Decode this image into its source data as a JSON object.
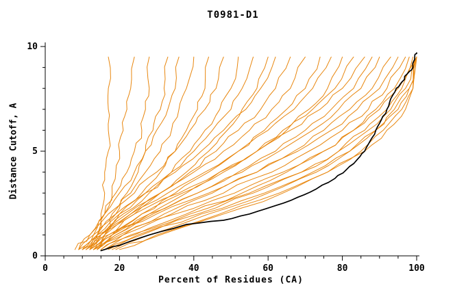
{
  "chart_data": {
    "type": "line",
    "title": "T0981-D1",
    "xlabel": "Percent of Residues (CA)",
    "ylabel": "Distance Cutoff, A",
    "xlim": [
      0,
      100
    ],
    "ylim": [
      0,
      10
    ],
    "xticks": [
      0,
      20,
      40,
      60,
      80,
      100
    ],
    "yticks": [
      0,
      5,
      10
    ],
    "x_minor_step": 5,
    "y_minor_step": 1,
    "legend": "none",
    "grid": false,
    "colors": {
      "models": "#e8860d",
      "highlight": "#000000",
      "axis": "#000000"
    },
    "y_grid": [
      0.3,
      1,
      2,
      3,
      4,
      5,
      6,
      7,
      8,
      9.5
    ],
    "highlight_series": {
      "name": "selected-model",
      "points": [
        [
          15,
          0.25
        ],
        [
          20,
          0.5
        ],
        [
          28,
          1
        ],
        [
          38,
          1.5
        ],
        [
          48,
          1.7
        ],
        [
          55,
          2
        ],
        [
          62,
          2.4
        ],
        [
          68,
          2.8
        ],
        [
          73,
          3.2
        ],
        [
          78,
          3.7
        ],
        [
          81,
          4.1
        ],
        [
          84,
          4.6
        ],
        [
          86,
          5
        ],
        [
          87.5,
          5.5
        ],
        [
          89,
          6
        ],
        [
          90.5,
          6.5
        ],
        [
          92,
          7
        ],
        [
          93,
          7.5
        ],
        [
          94.5,
          8
        ],
        [
          96,
          8.3
        ],
        [
          97.5,
          8.7
        ],
        [
          99,
          9
        ],
        [
          99.5,
          9.6
        ],
        [
          100,
          9.7
        ]
      ]
    },
    "model_series": [
      [
        13,
        14,
        15,
        16,
        16,
        17,
        17,
        17,
        17,
        17
      ],
      [
        12,
        14,
        16,
        18,
        19,
        20,
        21,
        22,
        23,
        24
      ],
      [
        10,
        13,
        16,
        19,
        22,
        24,
        26,
        27,
        28,
        28
      ],
      [
        14,
        16,
        19,
        22,
        25,
        27,
        29,
        31,
        32,
        33
      ],
      [
        9,
        12,
        16,
        20,
        24,
        27,
        30,
        33,
        35,
        36
      ],
      [
        11,
        14,
        18,
        23,
        27,
        31,
        34,
        36,
        38,
        40
      ],
      [
        13,
        16,
        20,
        26,
        31,
        35,
        38,
        41,
        43,
        44
      ],
      [
        8,
        12,
        17,
        24,
        30,
        35,
        39,
        43,
        46,
        48
      ],
      [
        12,
        15,
        21,
        28,
        34,
        39,
        43,
        47,
        50,
        52
      ],
      [
        10,
        14,
        20,
        27,
        34,
        40,
        45,
        50,
        53,
        56
      ],
      [
        14,
        18,
        24,
        31,
        38,
        44,
        49,
        53,
        57,
        60
      ],
      [
        9,
        13,
        19,
        27,
        35,
        42,
        48,
        54,
        58,
        62
      ],
      [
        12,
        16,
        23,
        31,
        39,
        46,
        52,
        58,
        62,
        66
      ],
      [
        11,
        15,
        22,
        31,
        40,
        48,
        55,
        61,
        66,
        70
      ],
      [
        13,
        18,
        26,
        35,
        44,
        52,
        59,
        65,
        70,
        74
      ],
      [
        10,
        15,
        23,
        33,
        43,
        52,
        60,
        67,
        72,
        77
      ],
      [
        14,
        19,
        28,
        38,
        48,
        57,
        64,
        71,
        76,
        80
      ],
      [
        12,
        17,
        26,
        37,
        47,
        57,
        65,
        72,
        78,
        83
      ],
      [
        9,
        14,
        24,
        36,
        47,
        57,
        66,
        74,
        80,
        86
      ],
      [
        13,
        19,
        29,
        41,
        52,
        62,
        70,
        77,
        83,
        88
      ],
      [
        11,
        17,
        28,
        41,
        53,
        63,
        72,
        79,
        85,
        90
      ],
      [
        15,
        21,
        32,
        45,
        57,
        67,
        75,
        82,
        88,
        93
      ],
      [
        12,
        18,
        30,
        44,
        57,
        68,
        77,
        84,
        90,
        95
      ],
      [
        14,
        21,
        34,
        48,
        61,
        71,
        80,
        87,
        92,
        97
      ],
      [
        16,
        24,
        38,
        53,
        65,
        75,
        83,
        89,
        94,
        98
      ],
      [
        13,
        20,
        35,
        51,
        64,
        75,
        83,
        90,
        95,
        99
      ],
      [
        17,
        26,
        41,
        56,
        69,
        79,
        86,
        92,
        96,
        100
      ],
      [
        15,
        23,
        39,
        55,
        69,
        79,
        87,
        93,
        97,
        100
      ],
      [
        18,
        28,
        44,
        60,
        73,
        82,
        89,
        94,
        98,
        100
      ],
      [
        16,
        25,
        42,
        59,
        72,
        82,
        89,
        95,
        98,
        100
      ],
      [
        20,
        31,
        48,
        64,
        76,
        85,
        91,
        96,
        99,
        100
      ],
      [
        19,
        30,
        47,
        63,
        76,
        86,
        92,
        97,
        99,
        100
      ]
    ]
  }
}
